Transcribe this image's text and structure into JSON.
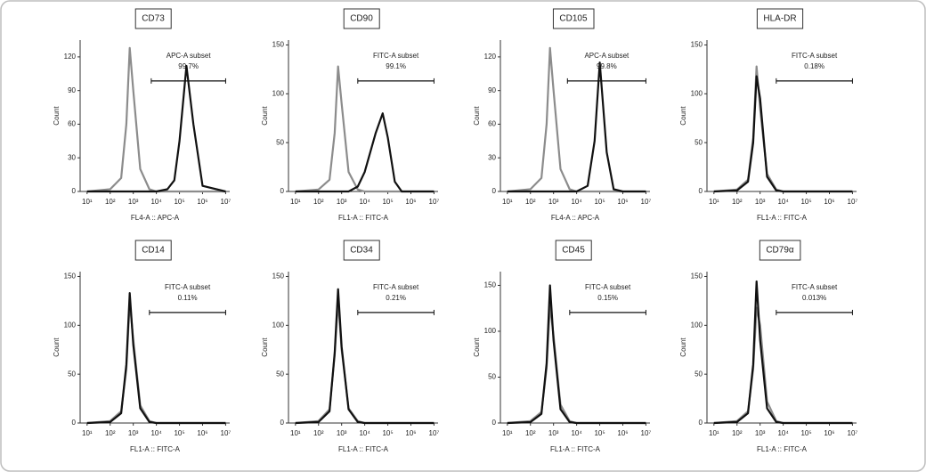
{
  "chart_data": [
    {
      "type": "line",
      "title": "CD73",
      "x_label": "FL4-A :: APC-A",
      "y_label": "Count",
      "gate_label": "APC-A subset",
      "subset_percent": "99.7%",
      "gate": [
        6000,
        10000000
      ],
      "log_x": true,
      "xlim": [
        5,
        15000000
      ],
      "ylim": [
        0,
        135
      ],
      "yticks": [
        0,
        30,
        60,
        90,
        120
      ],
      "xticks": [
        {
          "value": 10,
          "label": "10¹"
        },
        {
          "value": 100,
          "label": "10²"
        },
        {
          "value": 1000,
          "label": "10³"
        },
        {
          "value": 10000,
          "label": "10⁴"
        },
        {
          "value": 100000,
          "label": "10⁵"
        },
        {
          "value": 1000000,
          "label": "10⁶"
        },
        {
          "value": 10000000,
          "label": "10⁷"
        }
      ],
      "x": [
        10,
        100,
        300,
        500,
        700,
        1000,
        2000,
        5000,
        10000,
        30000,
        60000,
        100000,
        200000,
        400000,
        1000000,
        10000000
      ],
      "series": [
        {
          "color": "#8c8c8c",
          "values": [
            0,
            2,
            12,
            60,
            128,
            90,
            20,
            2,
            0,
            0,
            0,
            0,
            0,
            0,
            0,
            0
          ]
        },
        {
          "color": "#111111",
          "values": [
            0,
            0,
            0,
            0,
            0,
            0,
            0,
            0,
            0,
            2,
            10,
            45,
            112,
            60,
            5,
            0
          ]
        }
      ]
    },
    {
      "type": "line",
      "title": "CD90",
      "x_label": "FL1-A :: FITC-A",
      "y_label": "Count",
      "gate_label": "FITC-A subset",
      "subset_percent": "99.1%",
      "gate": [
        5000,
        10000000
      ],
      "log_x": true,
      "xlim": [
        5,
        15000000
      ],
      "ylim": [
        0,
        155
      ],
      "yticks": [
        0,
        50,
        100,
        150
      ],
      "xticks": [
        {
          "value": 10,
          "label": "10¹"
        },
        {
          "value": 100,
          "label": "10²"
        },
        {
          "value": 1000,
          "label": "10³"
        },
        {
          "value": 10000,
          "label": "10⁴"
        },
        {
          "value": 100000,
          "label": "10⁵"
        },
        {
          "value": 1000000,
          "label": "10⁶"
        },
        {
          "value": 10000000,
          "label": "10⁷"
        }
      ],
      "x": [
        10,
        100,
        300,
        500,
        700,
        1000,
        2000,
        5000,
        10000,
        30000,
        60000,
        100000,
        200000,
        400000,
        1000000,
        10000000
      ],
      "series": [
        {
          "color": "#8c8c8c",
          "values": [
            0,
            2,
            12,
            60,
            128,
            90,
            20,
            2,
            0,
            0,
            0,
            0,
            0,
            0,
            0,
            0
          ]
        },
        {
          "color": "#111111",
          "values": [
            0,
            0,
            0,
            0,
            0,
            0,
            0,
            5,
            20,
            60,
            80,
            55,
            10,
            0,
            0,
            0
          ]
        }
      ]
    },
    {
      "type": "line",
      "title": "CD105",
      "x_label": "FL4-A :: APC-A",
      "y_label": "Count",
      "gate_label": "APC-A subset",
      "subset_percent": "99.8%",
      "gate": [
        4000,
        10000000
      ],
      "log_x": true,
      "xlim": [
        5,
        15000000
      ],
      "ylim": [
        0,
        135
      ],
      "yticks": [
        0,
        30,
        60,
        90,
        120
      ],
      "xticks": [
        {
          "value": 10,
          "label": "10¹"
        },
        {
          "value": 100,
          "label": "10²"
        },
        {
          "value": 1000,
          "label": "10³"
        },
        {
          "value": 10000,
          "label": "10⁴"
        },
        {
          "value": 100000,
          "label": "10⁵"
        },
        {
          "value": 1000000,
          "label": "10⁶"
        },
        {
          "value": 10000000,
          "label": "10⁷"
        }
      ],
      "x": [
        10,
        100,
        300,
        500,
        700,
        1000,
        2000,
        5000,
        10000,
        30000,
        60000,
        100000,
        200000,
        400000,
        1000000,
        10000000
      ],
      "series": [
        {
          "color": "#8c8c8c",
          "values": [
            0,
            2,
            12,
            60,
            128,
            90,
            20,
            2,
            0,
            0,
            0,
            0,
            0,
            0,
            0,
            0
          ]
        },
        {
          "color": "#111111",
          "values": [
            0,
            0,
            0,
            0,
            0,
            0,
            0,
            0,
            0,
            5,
            45,
            115,
            35,
            2,
            0,
            0
          ]
        }
      ]
    },
    {
      "type": "line",
      "title": "HLA-DR",
      "x_label": "FL1-A :: FITC-A",
      "y_label": "Count",
      "gate_label": "FITC-A subset",
      "subset_percent": "0.18%",
      "gate": [
        5000,
        10000000
      ],
      "log_x": true,
      "xlim": [
        5,
        15000000
      ],
      "ylim": [
        0,
        155
      ],
      "yticks": [
        0,
        50,
        100,
        150
      ],
      "xticks": [
        {
          "value": 10,
          "label": "10¹"
        },
        {
          "value": 100,
          "label": "10²"
        },
        {
          "value": 1000,
          "label": "10³"
        },
        {
          "value": 10000,
          "label": "10⁴"
        },
        {
          "value": 100000,
          "label": "10⁵"
        },
        {
          "value": 1000000,
          "label": "10⁶"
        },
        {
          "value": 10000000,
          "label": "10⁷"
        }
      ],
      "x": [
        10,
        100,
        300,
        500,
        700,
        1000,
        2000,
        5000,
        10000,
        30000,
        60000,
        100000,
        200000,
        400000,
        1000000,
        10000000
      ],
      "series": [
        {
          "color": "#8c8c8c",
          "values": [
            0,
            2,
            12,
            55,
            128,
            85,
            18,
            2,
            0,
            0,
            0,
            0,
            0,
            0,
            0,
            0
          ]
        },
        {
          "color": "#111111",
          "values": [
            0,
            1,
            10,
            50,
            118,
            95,
            15,
            1,
            0,
            0,
            0,
            0,
            0,
            0,
            0,
            0
          ]
        }
      ]
    },
    {
      "type": "line",
      "title": "CD14",
      "x_label": "FL1-A :: FITC-A",
      "y_label": "Count",
      "gate_label": "FITC-A subset",
      "subset_percent": "0.11%",
      "gate": [
        5000,
        10000000
      ],
      "log_x": true,
      "xlim": [
        5,
        15000000
      ],
      "ylim": [
        0,
        155
      ],
      "yticks": [
        0,
        50,
        100,
        150
      ],
      "xticks": [
        {
          "value": 10,
          "label": "10¹"
        },
        {
          "value": 100,
          "label": "10²"
        },
        {
          "value": 1000,
          "label": "10³"
        },
        {
          "value": 10000,
          "label": "10⁴"
        },
        {
          "value": 100000,
          "label": "10⁵"
        },
        {
          "value": 1000000,
          "label": "10⁶"
        },
        {
          "value": 10000000,
          "label": "10⁷"
        }
      ],
      "x": [
        10,
        100,
        300,
        500,
        700,
        1000,
        2000,
        5000,
        10000,
        30000,
        60000,
        100000,
        200000,
        400000,
        1000000,
        10000000
      ],
      "series": [
        {
          "color": "#8c8c8c",
          "values": [
            0,
            2,
            12,
            55,
            125,
            85,
            18,
            2,
            0,
            0,
            0,
            0,
            0,
            0,
            0,
            0
          ]
        },
        {
          "color": "#111111",
          "values": [
            0,
            1,
            10,
            60,
            133,
            80,
            15,
            1,
            0,
            0,
            0,
            0,
            0,
            0,
            0,
            0
          ]
        }
      ]
    },
    {
      "type": "line",
      "title": "CD34",
      "x_label": "FL1-A :: FITC-A",
      "y_label": "Count",
      "gate_label": "FITC-A subset",
      "subset_percent": "0.21%",
      "gate": [
        5000,
        10000000
      ],
      "log_x": true,
      "xlim": [
        5,
        15000000
      ],
      "ylim": [
        0,
        155
      ],
      "yticks": [
        0,
        50,
        100,
        150
      ],
      "xticks": [
        {
          "value": 10,
          "label": "10¹"
        },
        {
          "value": 100,
          "label": "10²"
        },
        {
          "value": 1000,
          "label": "10³"
        },
        {
          "value": 10000,
          "label": "10⁴"
        },
        {
          "value": 100000,
          "label": "10⁵"
        },
        {
          "value": 1000000,
          "label": "10⁶"
        },
        {
          "value": 10000000,
          "label": "10⁷"
        }
      ],
      "x": [
        10,
        100,
        300,
        500,
        700,
        1000,
        2000,
        5000,
        10000,
        30000,
        60000,
        100000,
        200000,
        400000,
        1000000,
        10000000
      ],
      "series": [
        {
          "color": "#8c8c8c",
          "values": [
            0,
            2,
            14,
            70,
            125,
            75,
            15,
            2,
            0,
            0,
            0,
            0,
            0,
            0,
            0,
            0
          ]
        },
        {
          "color": "#111111",
          "values": [
            0,
            1,
            12,
            72,
            137,
            78,
            14,
            1,
            0,
            0,
            0,
            0,
            0,
            0,
            0,
            0
          ]
        }
      ]
    },
    {
      "type": "line",
      "title": "CD45",
      "x_label": "FL1-A :: FITC-A",
      "y_label": "Count",
      "gate_label": "FITC-A subset",
      "subset_percent": "0.15%",
      "gate": [
        5000,
        10000000
      ],
      "log_x": true,
      "xlim": [
        5,
        15000000
      ],
      "ylim": [
        0,
        165
      ],
      "yticks": [
        0,
        50,
        100,
        150
      ],
      "xticks": [
        {
          "value": 10,
          "label": "10¹"
        },
        {
          "value": 100,
          "label": "10²"
        },
        {
          "value": 1000,
          "label": "10³"
        },
        {
          "value": 10000,
          "label": "10⁴"
        },
        {
          "value": 100000,
          "label": "10⁵"
        },
        {
          "value": 1000000,
          "label": "10⁶"
        },
        {
          "value": 10000000,
          "label": "10⁷"
        }
      ],
      "x": [
        10,
        100,
        300,
        500,
        700,
        1000,
        2000,
        5000,
        10000,
        30000,
        60000,
        100000,
        200000,
        400000,
        1000000,
        10000000
      ],
      "series": [
        {
          "color": "#8c8c8c",
          "values": [
            0,
            2,
            12,
            60,
            128,
            95,
            20,
            2,
            0,
            0,
            0,
            0,
            0,
            0,
            0,
            0
          ]
        },
        {
          "color": "#111111",
          "values": [
            0,
            1,
            10,
            65,
            150,
            90,
            15,
            1,
            0,
            0,
            0,
            0,
            0,
            0,
            0,
            0
          ]
        }
      ]
    },
    {
      "type": "line",
      "title": "CD79α",
      "x_label": "FL1-A :: FITC-A",
      "y_label": "Count",
      "gate_label": "FITC-A subset",
      "subset_percent": "0.013%",
      "gate": [
        5000,
        10000000
      ],
      "log_x": true,
      "xlim": [
        5,
        15000000
      ],
      "ylim": [
        0,
        155
      ],
      "yticks": [
        0,
        50,
        100,
        150
      ],
      "xticks": [
        {
          "value": 10,
          "label": "10¹"
        },
        {
          "value": 100,
          "label": "10²"
        },
        {
          "value": 1000,
          "label": "10³"
        },
        {
          "value": 10000,
          "label": "10⁴"
        },
        {
          "value": 100000,
          "label": "10⁵"
        },
        {
          "value": 1000000,
          "label": "10⁶"
        },
        {
          "value": 10000000,
          "label": "10⁷"
        }
      ],
      "x": [
        10,
        100,
        300,
        500,
        700,
        1000,
        2000,
        5000,
        10000,
        30000,
        60000,
        100000,
        200000,
        400000,
        1000000,
        10000000
      ],
      "series": [
        {
          "color": "#8c8c8c",
          "values": [
            0,
            2,
            12,
            55,
            118,
            100,
            22,
            2,
            0,
            0,
            0,
            0,
            0,
            0,
            0,
            0
          ]
        },
        {
          "color": "#111111",
          "values": [
            0,
            1,
            10,
            60,
            145,
            85,
            15,
            1,
            0,
            0,
            0,
            0,
            0,
            0,
            0,
            0
          ]
        }
      ]
    }
  ]
}
